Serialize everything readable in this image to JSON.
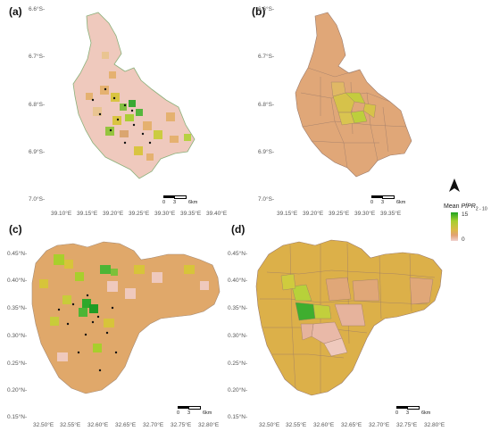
{
  "panels": [
    {
      "label": "(a)",
      "lat_ticks": [
        "6.6°S-",
        "6.7°S-",
        "6.8°S-",
        "6.9°S-",
        "7.0°S-"
      ],
      "lon_ticks": [
        "39.10°E",
        "39.15°E",
        "39.20°E",
        "39.25°E",
        "39.30°E",
        "39.35°E",
        "39.40°E"
      ],
      "scale": [
        "0",
        "3",
        "6km"
      ]
    },
    {
      "label": "(b)",
      "lat_ticks": [
        "6.6°S-",
        "6.7°S-",
        "6.8°S-",
        "6.9°S-",
        "7.0°S-"
      ],
      "lon_ticks": [
        "39.15°E",
        "39.20°E",
        "39.25°E",
        "39.30°E",
        "39.35°E"
      ],
      "scale": [
        "0",
        "3",
        "6km"
      ]
    },
    {
      "label": "(c)",
      "lat_ticks": [
        "0.45°N-",
        "0.40°N-",
        "0.35°N-",
        "0.30°N-",
        "0.25°N-",
        "0.20°N-",
        "0.15°N-"
      ],
      "lon_ticks": [
        "32.50°E",
        "32.55°E",
        "32.60°E",
        "32.65°E",
        "32.70°E",
        "32.75°E",
        "32.80°E"
      ],
      "scale": [
        "0",
        "3",
        "6km"
      ]
    },
    {
      "label": "(d)",
      "lat_ticks": [
        "0.45°N-",
        "0.40°N-",
        "0.35°N-",
        "0.30°N-",
        "0.25°N-",
        "0.20°N-",
        "0.15°N-"
      ],
      "lon_ticks": [
        "32.50°E",
        "32.55°E",
        "32.60°E",
        "32.65°E",
        "32.70°E",
        "32.75°E",
        "32.80°E"
      ],
      "scale": [
        "0",
        "3",
        "6km"
      ]
    }
  ],
  "legend": {
    "title_prefix": "Mean ",
    "title_italic": "PfPR",
    "title_suffix": "2 - 10",
    "max_label": "15",
    "min_label": "0"
  },
  "colors": {
    "high": "#1fa31f",
    "mid_high": "#a6cf2e",
    "mid": "#d9bb44",
    "mid_low": "#e2a173",
    "low": "#f0d2cf",
    "boundary": "#8a7a70"
  },
  "icons": {
    "north_arrow": "north-arrow-icon"
  }
}
